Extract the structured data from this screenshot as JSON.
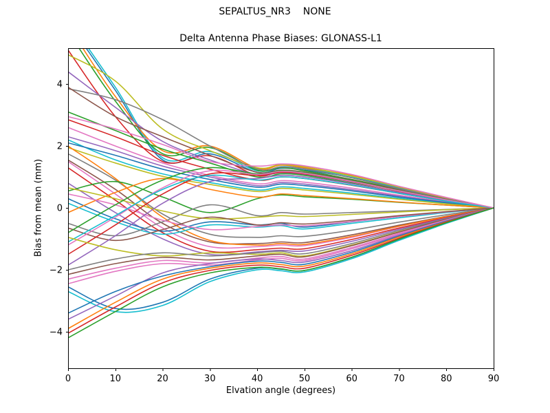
{
  "figure": {
    "suptitle": "SEPALTUS_NR3    NONE",
    "background": "#ffffff"
  },
  "chart_data": {
    "type": "line",
    "title": "Delta Antenna Phase Biases: GLONASS-L1",
    "suptitle": "SEPALTUS_NR3    NONE",
    "xlabel": "Elvation angle (degrees)",
    "ylabel": "Bias from mean (mm)",
    "xlim": [
      0,
      90
    ],
    "ylim": [
      -5.18,
      5.16
    ],
    "xticks": [
      0,
      10,
      20,
      30,
      40,
      50,
      60,
      70,
      80,
      90
    ],
    "xtick_labels": [
      "0",
      "10",
      "20",
      "30",
      "40",
      "50",
      "60",
      "70",
      "80",
      "90"
    ],
    "yticks": [
      -4,
      -2,
      0,
      2,
      4
    ],
    "ytick_labels": [
      "−4",
      "−2",
      "0",
      "2",
      "4"
    ],
    "grid": false,
    "legend": false,
    "axis_color": "#000000",
    "line_width": 1.6,
    "palette_note": "matplotlib tab10 cycle",
    "x": [
      0,
      10,
      20,
      30,
      40,
      45,
      50,
      60,
      70,
      80,
      90
    ],
    "series": [
      {
        "name": "line-01",
        "color": "#1f77b4",
        "values": [
          6.0,
          3.8,
          1.55,
          1.75,
          1.15,
          1.28,
          1.22,
          0.98,
          0.63,
          0.3,
          0
        ]
      },
      {
        "name": "line-02",
        "color": "#17becf",
        "values": [
          6.1,
          3.9,
          1.62,
          1.82,
          1.2,
          1.33,
          1.27,
          1.02,
          0.66,
          0.31,
          0
        ]
      },
      {
        "name": "line-03",
        "color": "#ff7f0e",
        "values": [
          5.9,
          3.6,
          1.85,
          2.0,
          1.28,
          1.38,
          1.3,
          1.05,
          0.67,
          0.32,
          0
        ]
      },
      {
        "name": "line-04",
        "color": "#2ca02c",
        "values": [
          5.7,
          3.45,
          1.75,
          1.95,
          1.22,
          1.3,
          1.2,
          0.92,
          0.6,
          0.28,
          0
        ]
      },
      {
        "name": "line-05",
        "color": "#d62728",
        "values": [
          5.1,
          2.95,
          1.5,
          1.68,
          1.05,
          1.18,
          1.12,
          0.88,
          0.55,
          0.26,
          0
        ]
      },
      {
        "name": "line-06",
        "color": "#bcbd22",
        "values": [
          4.95,
          4.1,
          2.55,
          1.85,
          1.3,
          1.4,
          1.33,
          1.03,
          0.68,
          0.33,
          0
        ]
      },
      {
        "name": "line-07",
        "color": "#9467bd",
        "values": [
          4.4,
          3.25,
          2.15,
          1.55,
          1.08,
          1.14,
          1.08,
          0.84,
          0.54,
          0.25,
          0
        ]
      },
      {
        "name": "line-08",
        "color": "#7f7f7f",
        "values": [
          3.85,
          3.5,
          2.85,
          2.0,
          1.26,
          1.32,
          1.26,
          0.97,
          0.62,
          0.29,
          0
        ]
      },
      {
        "name": "line-09",
        "color": "#8c564b",
        "values": [
          3.9,
          2.95,
          2.3,
          1.7,
          1.15,
          1.22,
          1.16,
          0.9,
          0.58,
          0.27,
          0
        ]
      },
      {
        "name": "line-10",
        "color": "#2ca02c",
        "values": [
          3.1,
          2.5,
          1.9,
          1.45,
          1.0,
          1.1,
          1.05,
          0.8,
          0.5,
          0.24,
          0
        ]
      },
      {
        "name": "line-11",
        "color": "#d62728",
        "values": [
          2.85,
          2.3,
          1.7,
          1.25,
          0.9,
          1.0,
          0.95,
          0.73,
          0.47,
          0.22,
          0
        ]
      },
      {
        "name": "line-12",
        "color": "#e377c2",
        "values": [
          2.6,
          2.0,
          1.45,
          1.05,
          0.78,
          0.88,
          0.83,
          0.64,
          0.41,
          0.19,
          0
        ]
      },
      {
        "name": "line-13",
        "color": "#9467bd",
        "values": [
          2.3,
          1.85,
          1.35,
          1.0,
          0.72,
          0.82,
          0.77,
          0.59,
          0.38,
          0.18,
          0
        ]
      },
      {
        "name": "line-14",
        "color": "#17becf",
        "values": [
          2.2,
          1.55,
          1.1,
          0.82,
          0.58,
          0.68,
          0.63,
          0.48,
          0.31,
          0.15,
          0
        ]
      },
      {
        "name": "line-15",
        "color": "#1f77b4",
        "values": [
          2.1,
          1.7,
          1.25,
          0.92,
          0.67,
          0.77,
          0.72,
          0.55,
          0.35,
          0.17,
          0
        ]
      },
      {
        "name": "line-16",
        "color": "#bcbd22",
        "values": [
          1.95,
          1.45,
          1.02,
          0.76,
          0.53,
          0.63,
          0.58,
          0.44,
          0.28,
          0.13,
          0
        ]
      },
      {
        "name": "line-17",
        "color": "#7f7f7f",
        "values": [
          1.75,
          0.9,
          -0.2,
          -0.85,
          -0.95,
          -0.9,
          -0.92,
          -0.72,
          -0.46,
          -0.22,
          0
        ]
      },
      {
        "name": "line-18",
        "color": "#8c564b",
        "values": [
          1.55,
          0.6,
          -0.5,
          -1.1,
          -1.15,
          -1.1,
          -1.12,
          -0.87,
          -0.56,
          -0.27,
          0
        ]
      },
      {
        "name": "line-19",
        "color": "#e377c2",
        "values": [
          1.5,
          0.45,
          -0.65,
          -1.25,
          -1.25,
          -1.2,
          -1.22,
          -0.95,
          -0.6,
          -0.29,
          0
        ]
      },
      {
        "name": "line-20",
        "color": "#ff7f0e",
        "values": [
          2.0,
          0.95,
          -0.3,
          -1.05,
          -1.2,
          -1.15,
          -1.18,
          -0.92,
          -0.59,
          -0.28,
          0
        ]
      },
      {
        "name": "line-21",
        "color": "#d62728",
        "values": [
          1.3,
          0.25,
          -0.8,
          -1.4,
          -1.35,
          -1.3,
          -1.32,
          -1.02,
          -0.65,
          -0.31,
          0
        ]
      },
      {
        "name": "line-22",
        "color": "#9467bd",
        "values": [
          0.8,
          -0.15,
          -1.0,
          -1.5,
          -1.42,
          -1.37,
          -1.39,
          -1.08,
          -0.69,
          -0.33,
          0
        ]
      },
      {
        "name": "line-23",
        "color": "#2ca02c",
        "values": [
          0.55,
          0.85,
          0.35,
          -0.15,
          0.3,
          0.42,
          0.36,
          0.28,
          0.18,
          0.09,
          0
        ]
      },
      {
        "name": "line-24",
        "color": "#1f77b4",
        "values": [
          0.3,
          -0.35,
          -0.75,
          -0.45,
          -0.55,
          -0.5,
          -0.62,
          -0.45,
          -0.28,
          -0.13,
          0
        ]
      },
      {
        "name": "line-25",
        "color": "#17becf",
        "values": [
          0.15,
          -0.45,
          -0.85,
          -0.55,
          -0.62,
          -0.57,
          -0.68,
          -0.5,
          -0.32,
          -0.15,
          0
        ]
      },
      {
        "name": "line-26",
        "color": "#ff7f0e",
        "values": [
          -0.15,
          0.5,
          0.95,
          0.6,
          0.35,
          0.45,
          0.4,
          0.3,
          0.19,
          0.09,
          0
        ]
      },
      {
        "name": "line-27",
        "color": "#7f7f7f",
        "values": [
          -0.5,
          -0.9,
          -0.45,
          0.1,
          -0.25,
          -0.15,
          -0.2,
          -0.15,
          -0.1,
          -0.05,
          0
        ]
      },
      {
        "name": "line-28",
        "color": "#e377c2",
        "values": [
          0.45,
          0.1,
          -0.4,
          -0.7,
          -0.6,
          -0.55,
          -0.58,
          -0.44,
          -0.28,
          -0.13,
          0
        ]
      },
      {
        "name": "line-29",
        "color": "#bcbd22",
        "values": [
          0.65,
          0.3,
          -0.1,
          -0.35,
          -0.3,
          -0.25,
          -0.28,
          -0.21,
          -0.13,
          -0.06,
          0
        ]
      },
      {
        "name": "line-30",
        "color": "#8c564b",
        "values": [
          -0.65,
          -1.05,
          -0.7,
          -0.3,
          -0.55,
          -0.48,
          -0.52,
          -0.4,
          -0.25,
          -0.12,
          0
        ]
      },
      {
        "name": "line-31",
        "color": "#9467bd",
        "values": [
          -1.85,
          -0.9,
          0.15,
          0.85,
          0.95,
          1.05,
          1.0,
          0.78,
          0.5,
          0.24,
          0
        ]
      },
      {
        "name": "line-32",
        "color": "#2ca02c",
        "values": [
          -0.8,
          0.1,
          0.9,
          1.3,
          1.1,
          1.2,
          1.14,
          0.88,
          0.56,
          0.27,
          0
        ]
      },
      {
        "name": "line-33",
        "color": "#d62728",
        "values": [
          -1.5,
          -0.55,
          0.45,
          1.1,
          1.05,
          1.15,
          1.1,
          0.85,
          0.54,
          0.26,
          0
        ]
      },
      {
        "name": "line-34",
        "color": "#e377c2",
        "values": [
          -1.2,
          -0.3,
          0.65,
          1.2,
          1.08,
          1.18,
          1.12,
          0.86,
          0.55,
          0.26,
          0
        ]
      },
      {
        "name": "line-35",
        "color": "#17becf",
        "values": [
          -1.1,
          -0.25,
          0.6,
          1.05,
          0.9,
          1.0,
          0.95,
          0.74,
          0.47,
          0.22,
          0
        ]
      },
      {
        "name": "line-36",
        "color": "#bcbd22",
        "values": [
          -0.95,
          -1.35,
          -1.55,
          -1.45,
          -1.5,
          -1.45,
          -1.55,
          -1.2,
          -0.77,
          -0.37,
          0
        ]
      },
      {
        "name": "line-37",
        "color": "#7f7f7f",
        "values": [
          -2.0,
          -1.65,
          -1.45,
          -1.55,
          -1.45,
          -1.4,
          -1.48,
          -1.15,
          -0.73,
          -0.35,
          0
        ]
      },
      {
        "name": "line-38",
        "color": "#8c564b",
        "values": [
          -2.15,
          -1.8,
          -1.6,
          -1.68,
          -1.55,
          -1.5,
          -1.58,
          -1.22,
          -0.78,
          -0.37,
          0
        ]
      },
      {
        "name": "line-39",
        "color": "#e377c2",
        "values": [
          -2.3,
          -1.95,
          -1.7,
          -1.78,
          -1.62,
          -1.57,
          -1.65,
          -1.28,
          -0.82,
          -0.39,
          0
        ]
      },
      {
        "name": "line-40",
        "color": "#e377c2",
        "values": [
          -2.45,
          -2.05,
          -1.8,
          -1.85,
          -1.68,
          -1.63,
          -1.7,
          -1.32,
          -0.85,
          -0.4,
          0
        ]
      },
      {
        "name": "line-41",
        "color": "#1f77b4",
        "values": [
          -2.55,
          -3.25,
          -3.05,
          -2.3,
          -1.95,
          -1.98,
          -2.02,
          -1.6,
          -1.02,
          -0.48,
          0
        ]
      },
      {
        "name": "line-42",
        "color": "#17becf",
        "values": [
          -2.7,
          -3.35,
          -3.15,
          -2.38,
          -2.0,
          -2.03,
          -2.07,
          -1.64,
          -1.05,
          -0.5,
          0
        ]
      },
      {
        "name": "line-43",
        "color": "#9467bd",
        "values": [
          -3.6,
          -2.85,
          -2.1,
          -1.8,
          -1.65,
          -1.7,
          -1.75,
          -1.38,
          -0.88,
          -0.42,
          0
        ]
      },
      {
        "name": "line-44",
        "color": "#1f77b4",
        "values": [
          -3.4,
          -2.7,
          -2.2,
          -1.9,
          -1.72,
          -1.76,
          -1.82,
          -1.43,
          -0.91,
          -0.43,
          0
        ]
      },
      {
        "name": "line-45",
        "color": "#ff7f0e",
        "values": [
          -3.9,
          -3.05,
          -2.3,
          -1.95,
          -1.78,
          -1.83,
          -1.88,
          -1.48,
          -0.94,
          -0.45,
          0
        ]
      },
      {
        "name": "line-46",
        "color": "#d62728",
        "values": [
          -4.05,
          -3.2,
          -2.42,
          -2.02,
          -1.85,
          -1.9,
          -1.95,
          -1.53,
          -0.98,
          -0.46,
          0
        ]
      },
      {
        "name": "line-47",
        "color": "#e377c2",
        "values": [
          2.95,
          2.55,
          2.05,
          1.5,
          1.35,
          1.42,
          1.36,
          1.08,
          0.7,
          0.34,
          0
        ]
      },
      {
        "name": "line-48",
        "color": "#2ca02c",
        "values": [
          -4.2,
          -3.35,
          -2.55,
          -2.1,
          -1.92,
          -1.97,
          -2.02,
          -1.59,
          -1.01,
          -0.48,
          0
        ]
      }
    ]
  }
}
